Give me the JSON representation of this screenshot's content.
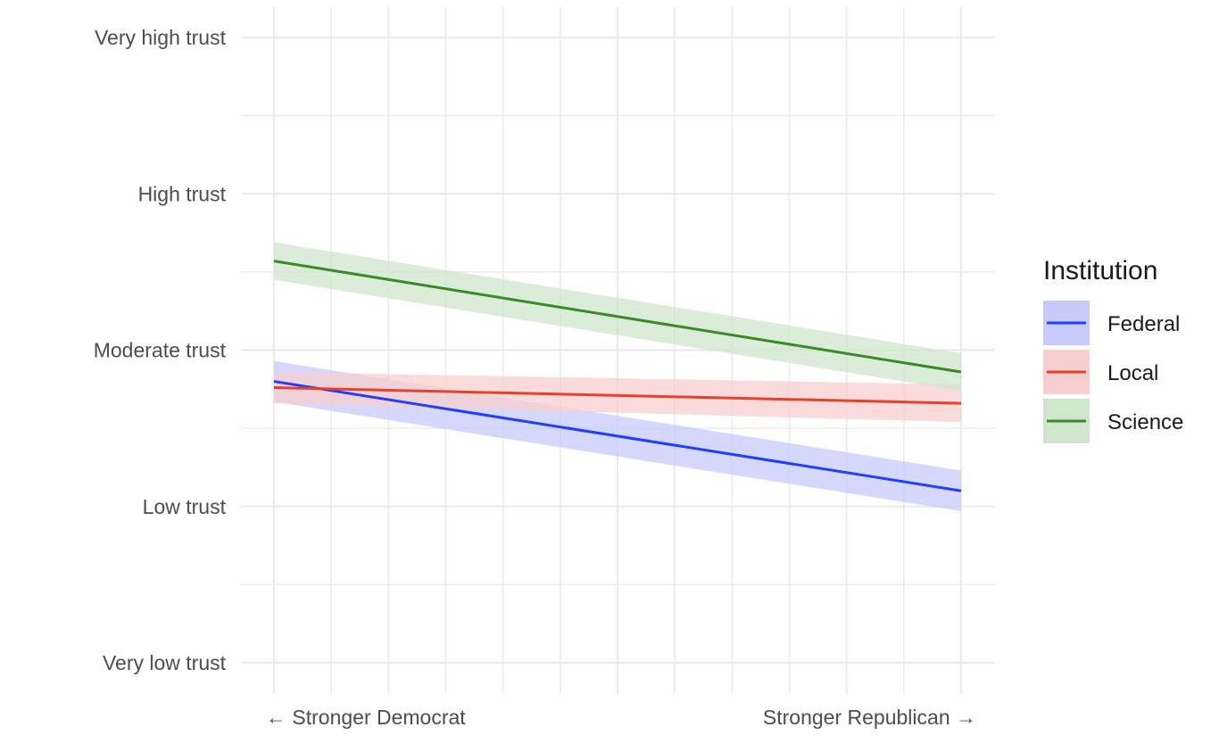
{
  "chart_data": {
    "type": "line",
    "title": "",
    "xlabel": "",
    "ylabel": "",
    "x_tick_labels": [
      "← Stronger Democrat",
      "Stronger Republican →"
    ],
    "x_range": [
      1,
      7
    ],
    "y_tick_labels": [
      "Very low trust",
      "Low trust",
      "Moderate trust",
      "High trust",
      "Very high trust"
    ],
    "y_tick_values": [
      1,
      2,
      3,
      4,
      5
    ],
    "ylim": [
      1,
      5
    ],
    "grid": true,
    "legend": {
      "title": "Institution",
      "position": "right"
    },
    "series": [
      {
        "name": "Federal",
        "color": "#1f3eff",
        "band_color": "#c7cbfb",
        "x": [
          1,
          7
        ],
        "y": [
          2.8,
          2.1
        ],
        "ci_lower": [
          2.67,
          1.97
        ],
        "ci_upper": [
          2.93,
          2.23
        ]
      },
      {
        "name": "Local",
        "color": "#e8402a",
        "band_color": "#f7cfcf",
        "x": [
          1,
          7
        ],
        "y": [
          2.76,
          2.66
        ],
        "ci_lower": [
          2.66,
          2.54
        ],
        "ci_upper": [
          2.86,
          2.78
        ]
      },
      {
        "name": "Science",
        "color": "#3a8a2a",
        "band_color": "#cfe5cc",
        "x": [
          1,
          7
        ],
        "y": [
          3.57,
          2.86
        ],
        "ci_lower": [
          3.45,
          2.74
        ],
        "ci_upper": [
          3.69,
          2.98
        ]
      }
    ]
  }
}
